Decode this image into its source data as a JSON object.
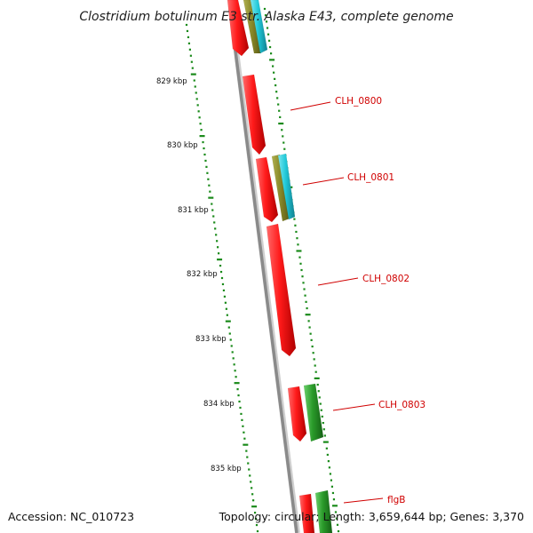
{
  "title": "Clostridium botulinum E3 str. Alaska E43, complete genome",
  "accession": "Accession: NC_010723",
  "summary": "Topology: circular; Length: 3,659,644 bp; Genes: 3,370",
  "colors": {
    "backbone": "#8a8a8a",
    "tick": "#1a8a1a",
    "label": "#d00000",
    "gene_red": "#ff1a1a",
    "gene_green": "#2a9a2a",
    "gene_olive": "#8a8a2a",
    "gene_cyan": "#20c8d8"
  },
  "scale_ticks": [
    {
      "label": "829 kbp"
    },
    {
      "label": "830 kbp"
    },
    {
      "label": "831 kbp"
    },
    {
      "label": "832 kbp"
    },
    {
      "label": "833 kbp"
    },
    {
      "label": "834 kbp"
    },
    {
      "label": "835 kbp"
    }
  ],
  "gene_labels": [
    {
      "text": "CLH_0800"
    },
    {
      "text": "CLH_0801"
    },
    {
      "text": "CLH_0802"
    },
    {
      "text": "CLH_0803"
    },
    {
      "text": "flgB"
    }
  ]
}
